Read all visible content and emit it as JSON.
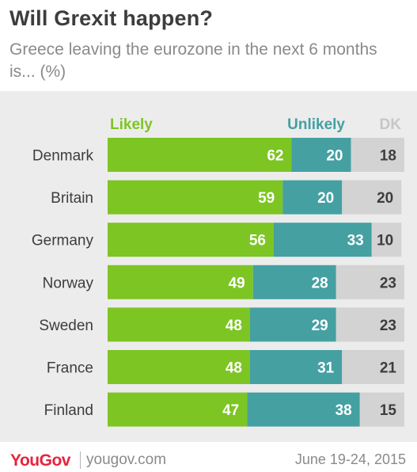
{
  "title": "Will Grexit happen?",
  "subtitle": "Greece leaving the eurozone in the next 6 months is... (%)",
  "footer": {
    "logo": "YouGov",
    "site": "yougov.com",
    "date": "June 19-24, 2015"
  },
  "colors": {
    "likely": "#7dc523",
    "unlikely": "#45a0a2",
    "dk": "#d3d3d3",
    "background": "#ececec"
  },
  "chart_data": {
    "type": "bar",
    "orientation": "horizontal",
    "stacked": true,
    "legend_placement": "top",
    "categories": [
      "Denmark",
      "Britain",
      "Germany",
      "Norway",
      "Sweden",
      "France",
      "Finland"
    ],
    "series": [
      {
        "name": "Likely",
        "values": [
          62,
          59,
          56,
          49,
          48,
          48,
          47
        ]
      },
      {
        "name": "Unlikely",
        "values": [
          20,
          20,
          33,
          28,
          29,
          31,
          38
        ]
      },
      {
        "name": "DK",
        "values": [
          18,
          20,
          10,
          23,
          23,
          21,
          15
        ]
      }
    ],
    "xlim": [
      0,
      100
    ],
    "grid": false
  }
}
